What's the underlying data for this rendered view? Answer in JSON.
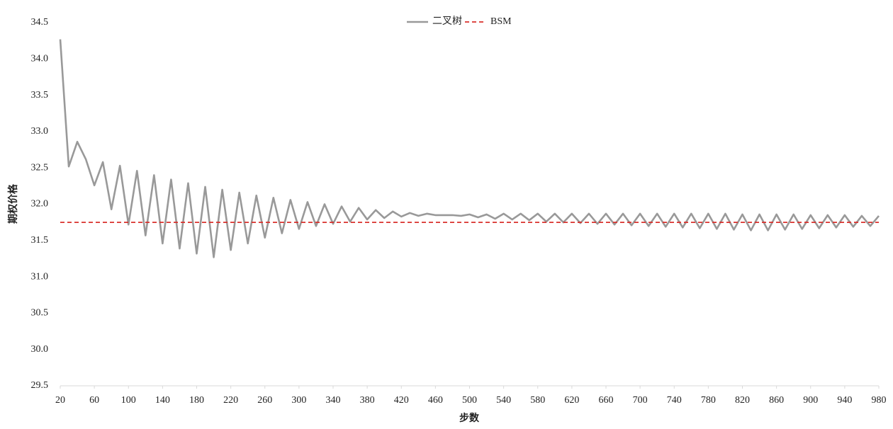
{
  "chart_data": {
    "type": "line",
    "y_label": "期权价格",
    "x_label": "步数",
    "series": [
      {
        "name": "二叉树",
        "color": "#999999",
        "dash": false,
        "x": [
          20,
          30,
          40,
          50,
          60,
          70,
          80,
          90,
          100,
          110,
          120,
          130,
          140,
          150,
          160,
          170,
          180,
          190,
          200,
          210,
          220,
          230,
          240,
          250,
          260,
          270,
          280,
          290,
          300,
          310,
          320,
          330,
          340,
          350,
          360,
          370,
          380,
          390,
          400,
          410,
          420,
          430,
          440,
          450,
          460,
          470,
          480,
          490,
          500,
          510,
          520,
          530,
          540,
          550,
          560,
          570,
          580,
          590,
          600,
          610,
          620,
          630,
          640,
          650,
          660,
          670,
          680,
          690,
          700,
          710,
          720,
          730,
          740,
          750,
          760,
          770,
          780,
          790,
          800,
          810,
          820,
          830,
          840,
          850,
          860,
          870,
          880,
          890,
          900,
          910,
          920,
          930,
          940,
          950,
          960,
          970,
          980
        ],
        "values": [
          34.27,
          32.52,
          32.86,
          32.62,
          32.26,
          32.58,
          31.93,
          32.53,
          31.72,
          32.46,
          31.57,
          32.4,
          31.46,
          32.34,
          31.39,
          32.29,
          31.32,
          32.24,
          31.27,
          32.2,
          31.37,
          32.16,
          31.46,
          32.12,
          31.54,
          32.09,
          31.6,
          32.06,
          31.66,
          32.03,
          31.7,
          32.0,
          31.73,
          31.97,
          31.76,
          31.95,
          31.79,
          31.92,
          31.81,
          31.9,
          31.83,
          31.88,
          31.84,
          31.87,
          31.85,
          31.85,
          31.85,
          31.84,
          31.86,
          31.82,
          31.86,
          31.8,
          31.87,
          31.79,
          31.87,
          31.78,
          31.87,
          31.76,
          31.87,
          31.75,
          31.87,
          31.74,
          31.87,
          31.73,
          31.87,
          31.72,
          31.87,
          31.71,
          31.87,
          31.7,
          31.87,
          31.69,
          31.87,
          31.68,
          31.87,
          31.67,
          31.87,
          31.66,
          31.87,
          31.65,
          31.86,
          31.64,
          31.86,
          31.64,
          31.86,
          31.65,
          31.86,
          31.66,
          31.85,
          31.67,
          31.85,
          31.68,
          31.85,
          31.69,
          31.84,
          31.7,
          31.84
        ]
      },
      {
        "name": "BSM",
        "color": "#d9302c",
        "dash": true,
        "x": [
          20,
          980
        ],
        "values": [
          31.75,
          31.75
        ]
      }
    ],
    "xlim": [
      20,
      980
    ],
    "xticks": [
      20,
      60,
      100,
      140,
      180,
      220,
      260,
      300,
      340,
      380,
      420,
      460,
      500,
      540,
      580,
      620,
      660,
      700,
      740,
      780,
      820,
      860,
      900,
      940,
      980
    ],
    "ylim": [
      29.5,
      34.5
    ],
    "yticks": [
      29.5,
      {
        "value": 30,
        "label": "30.0"
      },
      30.5,
      {
        "value": 31,
        "label": "31.0"
      },
      31.5,
      {
        "value": 32,
        "label": "32.0"
      },
      32.5,
      {
        "value": 33,
        "label": "33.0"
      },
      33.5,
      {
        "value": 34,
        "label": "34.0"
      },
      34.5
    ],
    "legend": "top",
    "grid": false
  }
}
